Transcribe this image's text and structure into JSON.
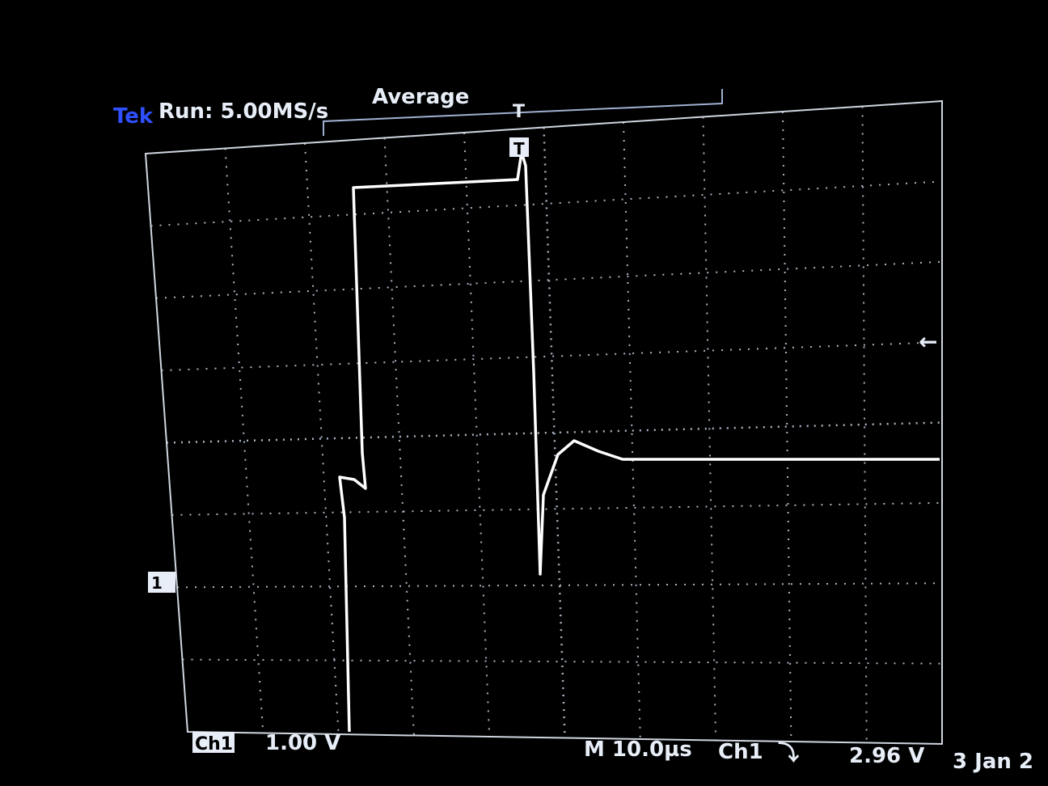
{
  "header": {
    "brand": "Tek",
    "status": "Run: 5.00MS/s",
    "mode": "Average",
    "trigger_position": "T"
  },
  "markers": {
    "channel_ground": "1",
    "trigger_level": "←"
  },
  "footer": {
    "channel": "Ch1",
    "scale": "1.00 V",
    "timebase": "M 10.0µs",
    "trigger_source": "Ch1",
    "trigger_slope": "⤵",
    "trigger_level": "2.96 V",
    "date": "3 Jan 2"
  }
}
